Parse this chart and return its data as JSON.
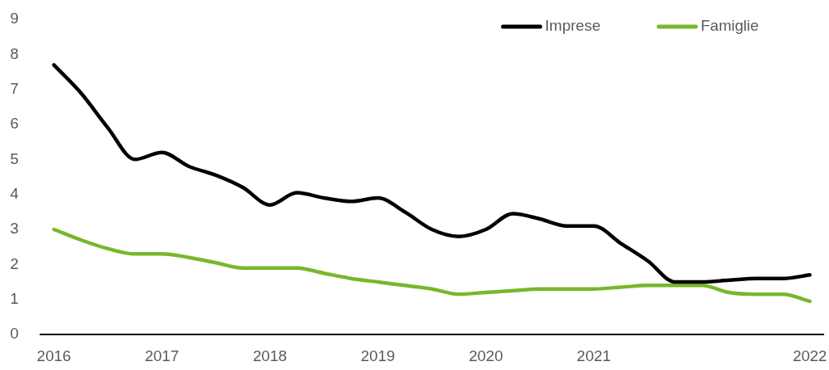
{
  "chart_data": {
    "type": "line",
    "categories": [
      "2016",
      null,
      null,
      null,
      "2017",
      null,
      null,
      null,
      "2018",
      null,
      null,
      null,
      "2019",
      null,
      null,
      null,
      "2020",
      null,
      null,
      null,
      "2021",
      null,
      null,
      null,
      null,
      null,
      null,
      null,
      "2022"
    ],
    "series": [
      {
        "name": "Imprese",
        "color": "#000000",
        "values": [
          7.7,
          6.9,
          5.9,
          5.0,
          5.2,
          4.8,
          4.55,
          4.2,
          3.7,
          4.05,
          3.9,
          3.8,
          3.9,
          3.5,
          3.0,
          2.8,
          3.0,
          3.45,
          3.3,
          3.1,
          3.1,
          2.6,
          2.1,
          1.5,
          1.5,
          1.55,
          1.6,
          1.6,
          1.7
        ]
      },
      {
        "name": "Famiglie",
        "color": "#76b82a",
        "values": [
          3.0,
          2.7,
          2.45,
          2.3,
          2.3,
          2.2,
          2.05,
          1.9,
          1.9,
          1.9,
          1.75,
          1.6,
          1.5,
          1.4,
          1.3,
          1.15,
          1.2,
          1.25,
          1.3,
          1.3,
          1.3,
          1.35,
          1.4,
          1.4,
          1.4,
          1.2,
          1.15,
          1.15,
          0.95
        ]
      }
    ],
    "ylim": [
      0,
      9
    ],
    "yticks": [
      0,
      1,
      2,
      3,
      4,
      5,
      6,
      7,
      8,
      9
    ],
    "grid": false,
    "legend": "top right",
    "marker": "none",
    "line_style": "solid"
  }
}
